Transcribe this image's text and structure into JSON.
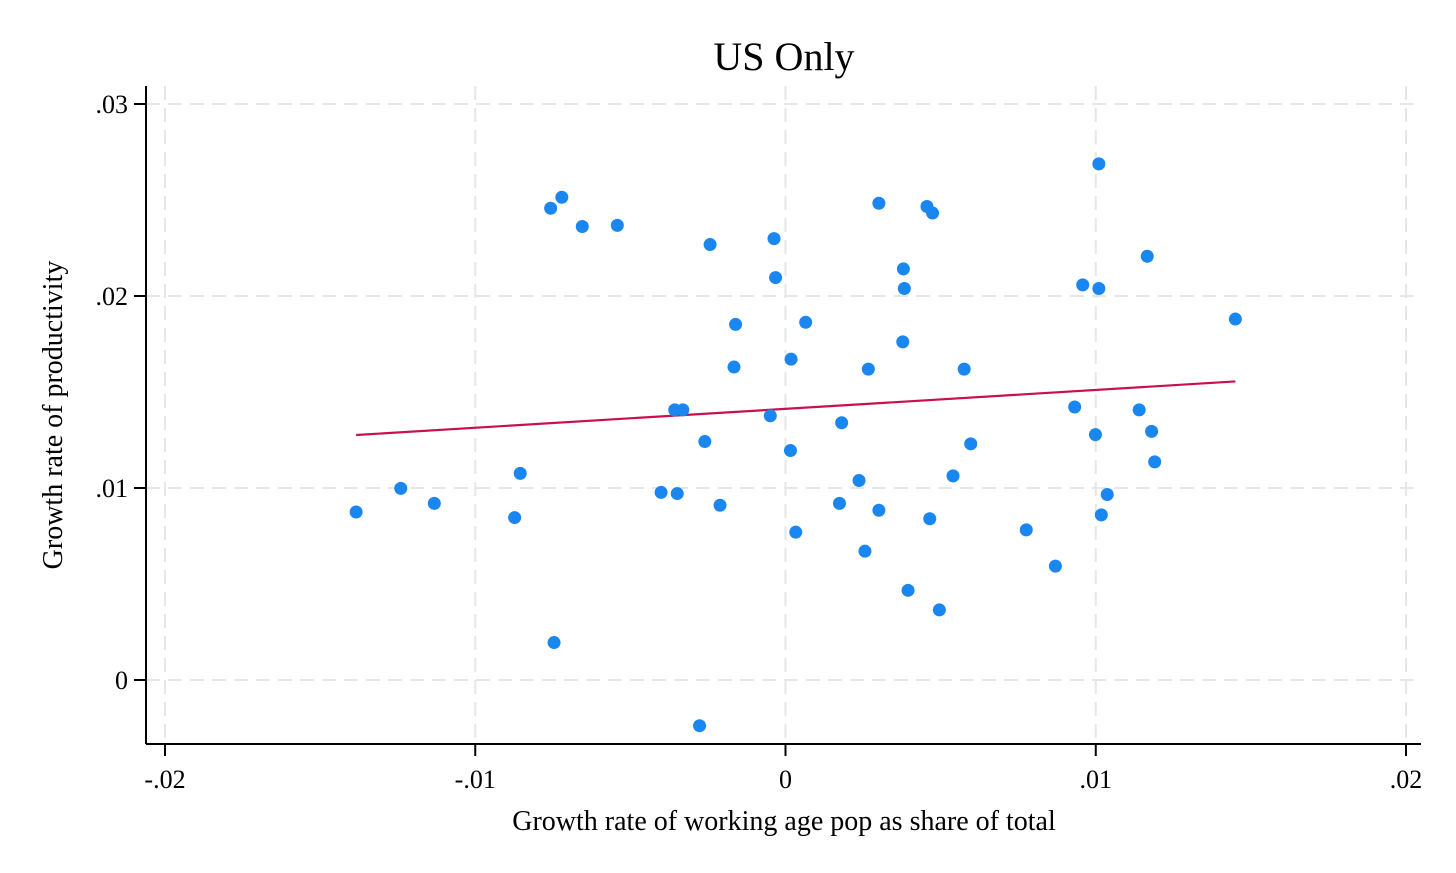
{
  "chart_data": {
    "type": "scatter",
    "title": "US Only",
    "xlabel": "Growth rate of working age pop as share of total",
    "ylabel": "Growth rate of productivity",
    "xlim": [
      -0.02,
      0.02
    ],
    "ylim": [
      -0.0033,
      0.031
    ],
    "x_ticks": [
      {
        "value": -0.02,
        "label": "-.02"
      },
      {
        "value": -0.01,
        "label": "-.01"
      },
      {
        "value": 0,
        "label": "0"
      },
      {
        "value": 0.01,
        "label": ".01"
      },
      {
        "value": 0.02,
        "label": ".02"
      }
    ],
    "y_ticks": [
      {
        "value": 0,
        "label": "0"
      },
      {
        "value": 0.01,
        "label": ".01"
      },
      {
        "value": 0.02,
        "label": ".02"
      },
      {
        "value": 0.03,
        "label": ".03"
      }
    ],
    "grid": true,
    "point_color": "#1a86f0",
    "fit_color": "#c8104e",
    "points": [
      {
        "x": -0.01384,
        "y": 0.00875
      },
      {
        "x": -0.0124,
        "y": 0.00998
      },
      {
        "x": -0.01132,
        "y": 0.0092
      },
      {
        "x": -0.00873,
        "y": 0.00846
      },
      {
        "x": -0.00855,
        "y": 0.01076
      },
      {
        "x": -0.00757,
        "y": 0.02457
      },
      {
        "x": -0.00721,
        "y": 0.02514
      },
      {
        "x": -0.00746,
        "y": 0.00195
      },
      {
        "x": -0.00655,
        "y": 0.02362
      },
      {
        "x": -0.00542,
        "y": 0.02368
      },
      {
        "x": -0.00401,
        "y": 0.00977
      },
      {
        "x": -0.00357,
        "y": 0.01407
      },
      {
        "x": -0.00331,
        "y": 0.01407
      },
      {
        "x": -0.00349,
        "y": 0.00971
      },
      {
        "x": -0.00243,
        "y": 0.02268
      },
      {
        "x": -0.0026,
        "y": 0.01242
      },
      {
        "x": -0.00211,
        "y": 0.0091
      },
      {
        "x": -0.00277,
        "y": -0.00238
      },
      {
        "x": -0.00161,
        "y": 0.01852
      },
      {
        "x": -0.00166,
        "y": 0.0163
      },
      {
        "x": -0.00037,
        "y": 0.02299
      },
      {
        "x": -0.00032,
        "y": 0.02096
      },
      {
        "x": -0.00049,
        "y": 0.01376
      },
      {
        "x": 0.00018,
        "y": 0.01671
      },
      {
        "x": 0.00016,
        "y": 0.01195
      },
      {
        "x": 0.00065,
        "y": 0.01863
      },
      {
        "x": 0.00033,
        "y": 0.0077
      },
      {
        "x": 0.00181,
        "y": 0.0134
      },
      {
        "x": 0.00174,
        "y": 0.0092
      },
      {
        "x": 0.00237,
        "y": 0.01039
      },
      {
        "x": 0.00267,
        "y": 0.01619
      },
      {
        "x": 0.00301,
        "y": 0.02483
      },
      {
        "x": 0.00301,
        "y": 0.00884
      },
      {
        "x": 0.00256,
        "y": 0.00671
      },
      {
        "x": 0.0038,
        "y": 0.02141
      },
      {
        "x": 0.00383,
        "y": 0.02039
      },
      {
        "x": 0.00378,
        "y": 0.01761
      },
      {
        "x": 0.00456,
        "y": 0.02466
      },
      {
        "x": 0.00474,
        "y": 0.02432
      },
      {
        "x": 0.00465,
        "y": 0.0084
      },
      {
        "x": 0.00395,
        "y": 0.00467
      },
      {
        "x": 0.00496,
        "y": 0.00365
      },
      {
        "x": 0.00576,
        "y": 0.01619
      },
      {
        "x": 0.0054,
        "y": 0.01063
      },
      {
        "x": 0.00597,
        "y": 0.0123
      },
      {
        "x": 0.00776,
        "y": 0.00782
      },
      {
        "x": 0.0087,
        "y": 0.00593
      },
      {
        "x": 0.00932,
        "y": 0.01422
      },
      {
        "x": 0.00958,
        "y": 0.02058
      },
      {
        "x": 0.00999,
        "y": 0.01278
      },
      {
        "x": 0.0101,
        "y": 0.02039
      },
      {
        "x": 0.0101,
        "y": 0.02688
      },
      {
        "x": 0.01018,
        "y": 0.0086
      },
      {
        "x": 0.01037,
        "y": 0.00966
      },
      {
        "x": 0.0114,
        "y": 0.01407
      },
      {
        "x": 0.01166,
        "y": 0.02207
      },
      {
        "x": 0.0118,
        "y": 0.01295
      },
      {
        "x": 0.0119,
        "y": 0.01136
      },
      {
        "x": 0.0145,
        "y": 0.0188
      }
    ],
    "fit_line": {
      "x": [
        -0.01384,
        0.0145
      ],
      "y": [
        0.01276,
        0.01555
      ]
    }
  }
}
